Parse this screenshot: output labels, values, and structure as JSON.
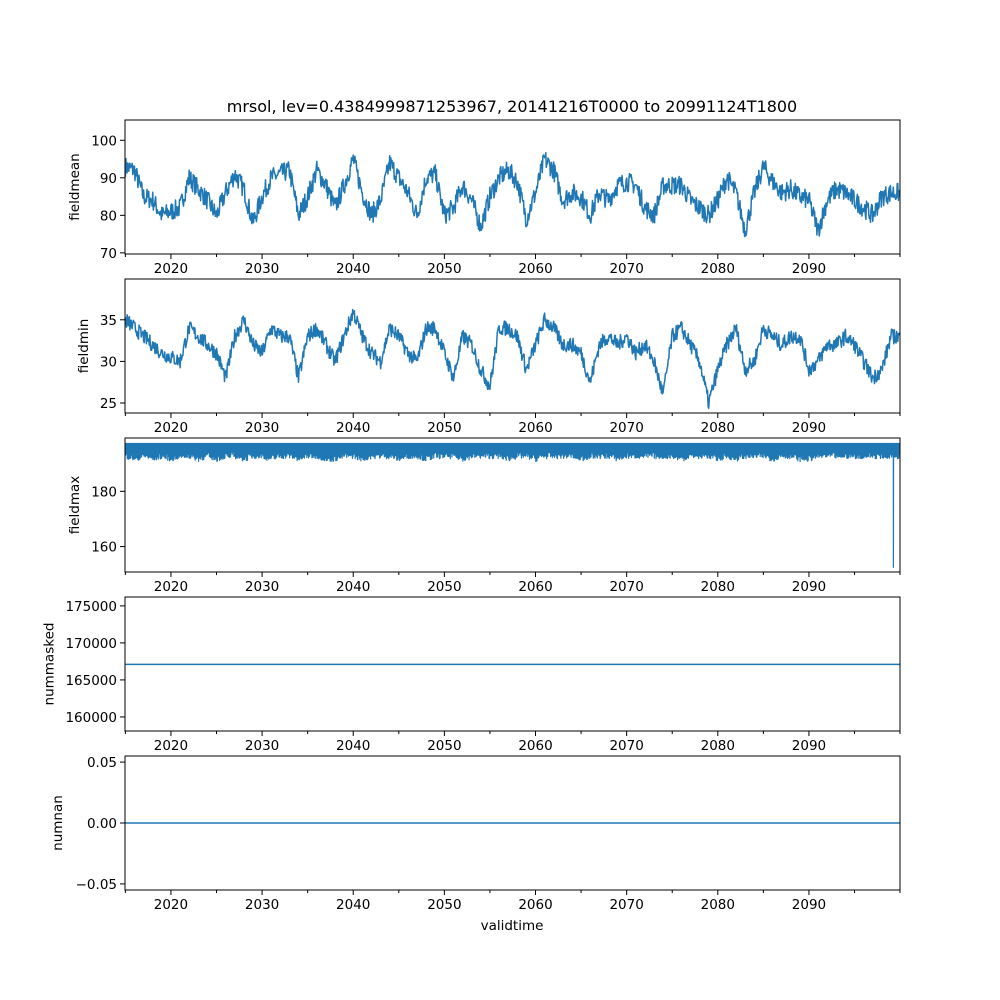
{
  "chart_data": {
    "type": "line",
    "title": "mrsol, lev=0.4384999871253967, 20141216T0000 to 20991124T1800",
    "xlabel": "validtime",
    "xlim": [
      2014.96,
      2099.99
    ],
    "xticks": [
      2020,
      2030,
      2040,
      2050,
      2060,
      2070,
      2080,
      2090
    ],
    "xtick_labels": [
      "2020",
      "2030",
      "2040",
      "2050",
      "2060",
      "2070",
      "2080",
      "2090"
    ],
    "line_color": "#1f77b4",
    "panels": [
      {
        "ylabel": "fieldmean",
        "ylim": [
          69.7,
          105.4
        ],
        "yticks": [
          70,
          80,
          90,
          100
        ],
        "ytick_labels": [
          "70",
          "80",
          "90",
          "100"
        ],
        "x_start": 2015,
        "x_step": 1,
        "noise": 2.6,
        "values": [
          93,
          92,
          85,
          84,
          80,
          81,
          82,
          90,
          87,
          84,
          80,
          86,
          91,
          87,
          78,
          85,
          90,
          91,
          92,
          80,
          85,
          92,
          88,
          82,
          88,
          95,
          86,
          80,
          84,
          94,
          90,
          86,
          80,
          90,
          91,
          80,
          82,
          88,
          84,
          77,
          85,
          90,
          92,
          89,
          79,
          86,
          95,
          92,
          84,
          86,
          85,
          80,
          86,
          84,
          88,
          89,
          88,
          82,
          80,
          88,
          88,
          88,
          84,
          82,
          80,
          84,
          90,
          86,
          76,
          86,
          93,
          89,
          86,
          87,
          85,
          84,
          76,
          84,
          87,
          86,
          84,
          82,
          80,
          85,
          86
        ]
      },
      {
        "ylabel": "fieldmin",
        "ylim": [
          23.8,
          39.9
        ],
        "yticks": [
          25,
          30,
          35
        ],
        "ytick_labels": [
          "25",
          "30",
          "35"
        ],
        "x_start": 2015,
        "x_step": 1,
        "noise": 0.9,
        "values": [
          35,
          34,
          33,
          32,
          31,
          30.5,
          30,
          34,
          33,
          32,
          31,
          28,
          33,
          35,
          32,
          31,
          34,
          33,
          33,
          28,
          33,
          34,
          32,
          30,
          33,
          36,
          33,
          31,
          30,
          34,
          33,
          31,
          30,
          34,
          34,
          31,
          28,
          33,
          32,
          29,
          27,
          34,
          34,
          33,
          29,
          32,
          35,
          34,
          32,
          32,
          31,
          27.5,
          32,
          33,
          32,
          33,
          31,
          32,
          30,
          26,
          33,
          34,
          32,
          30,
          25,
          29,
          32,
          34,
          29,
          30,
          34,
          33,
          32,
          33,
          33,
          29,
          30,
          32,
          32,
          33,
          32,
          30,
          28,
          29,
          33
        ]
      },
      {
        "ylabel": "fieldmax",
        "ylim": [
          150.8,
          199.3
        ],
        "yticks": [
          160,
          180
        ],
        "ytick_labels": [
          "160",
          "180"
        ],
        "band_top": 197.3,
        "x_start": 2015,
        "x_step": 1,
        "noise": 1.2,
        "values": [
          193,
          192,
          193,
          192,
          193,
          192,
          193,
          193,
          192,
          193,
          192,
          193,
          193,
          192,
          193,
          193,
          192,
          193,
          193,
          192,
          193,
          193,
          192,
          192,
          193,
          193,
          192,
          193,
          193,
          193,
          192,
          193,
          193,
          192,
          193,
          193,
          193,
          192,
          193,
          193,
          193,
          193,
          192,
          193,
          193,
          192,
          193,
          193,
          193,
          193,
          192,
          193,
          193,
          193,
          192,
          193,
          193,
          193,
          193,
          193,
          193,
          192,
          193,
          193,
          193,
          192,
          193,
          192,
          193,
          193,
          193,
          192,
          193,
          193,
          192,
          192,
          193,
          193,
          193,
          193,
          193,
          193,
          193,
          193,
          193
        ],
        "spike": {
          "x": 2099.25,
          "value": 152.5
        }
      },
      {
        "ylabel": "nummasked",
        "ylim": [
          158100,
          176200
        ],
        "yticks": [
          160000,
          165000,
          170000,
          175000
        ],
        "ytick_labels": [
          "160000",
          "165000",
          "170000",
          "175000"
        ],
        "constant": 167100
      },
      {
        "ylabel": "numnan",
        "ylim": [
          -0.055,
          0.055
        ],
        "yticks": [
          -0.05,
          0.0,
          0.05
        ],
        "ytick_labels": [
          "−0.05",
          "0.00",
          "0.05"
        ],
        "constant": 0
      }
    ]
  }
}
